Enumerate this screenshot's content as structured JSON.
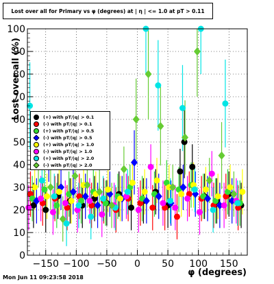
{
  "title": "Lost over all for Primary vs φ (degrees) at | η | <= 1.0 at pT > 0.11",
  "timestamp": "Mon Jun 11 09:23:58 2018",
  "legend": [
    {
      "label": "(+) with pT/|q| > 0.1",
      "color": "#000000",
      "shape": "circle"
    },
    {
      "label": "(-) with pT/|q| > 0.1",
      "color": "#ff0000",
      "shape": "circle"
    },
    {
      "label": "(+) with pT/|q| > 0.5",
      "color": "#33dd33",
      "shape": "circle"
    },
    {
      "label": "(-) with pT/|q| > 0.5",
      "color": "#0000ff",
      "shape": "diamond"
    },
    {
      "label": "(+) with pT/|q| > 1.0",
      "color": "#ffff00",
      "shape": "circle"
    },
    {
      "label": "(-) with pT/|q| > 1.0",
      "color": "#ff00ff",
      "shape": "circle"
    },
    {
      "label": "(+) with pT/|q| > 2.0",
      "color": "#00e5e5",
      "shape": "circle"
    },
    {
      "label": "(-) with pT/|q| > 2.0",
      "color": "#66cc33",
      "shape": "diamond"
    }
  ],
  "chart_data": {
    "type": "scatter",
    "title": "Lost over all for Primary vs φ (degrees) at | η | <= 1.0 at pT > 0.11",
    "xlabel": "φ (degrees)",
    "ylabel": "Lost over all (%)",
    "xlim": [
      -180,
      180
    ],
    "ylim": [
      0,
      100
    ],
    "xticks": [
      -150,
      -100,
      -50,
      0,
      50,
      100,
      150
    ],
    "yticks": [
      0,
      10,
      20,
      30,
      40,
      50,
      60,
      70,
      80,
      90,
      100
    ],
    "grid": true,
    "series": [
      {
        "name": "(+) with pT/|q| > 0.1",
        "color": "#000000",
        "marker": "circle",
        "x": [
          -170,
          -150,
          -130,
          -110,
          -90,
          -70,
          -50,
          -30,
          -10,
          10,
          30,
          50,
          70,
          77,
          90,
          110,
          130,
          150,
          170
        ],
        "y": [
          22,
          20,
          26,
          24,
          22,
          25,
          23,
          27,
          21,
          24,
          28,
          22,
          37,
          50,
          39,
          26,
          24,
          27,
          22
        ]
      },
      {
        "name": "(-) with pT/|q| > 0.1",
        "color": "#ff0000",
        "marker": "circle",
        "x": [
          -175,
          -155,
          -135,
          -115,
          -95,
          -75,
          -55,
          -35,
          -15,
          5,
          25,
          45,
          65,
          85,
          105,
          125,
          145,
          165
        ],
        "y": [
          27,
          23,
          25,
          21,
          26,
          22,
          24,
          20,
          25,
          23,
          21,
          21,
          17,
          27,
          25,
          22,
          26,
          21
        ]
      },
      {
        "name": "(+) with pT/|q| > 0.5",
        "color": "#33dd33",
        "marker": "circle",
        "x": [
          -172,
          -152,
          -132,
          -112,
          -92,
          -72,
          -52,
          -32,
          -12,
          8,
          28,
          48,
          68,
          88,
          108,
          128,
          148,
          168
        ],
        "y": [
          25,
          29,
          22,
          27,
          24,
          28,
          23,
          26,
          30,
          25,
          27,
          32,
          29,
          31,
          26,
          24,
          28,
          23
        ]
      },
      {
        "name": "(-) with pT/|q| > 0.5",
        "color": "#0000ff",
        "marker": "diamond",
        "x": [
          -165,
          -145,
          -125,
          -105,
          -85,
          -65,
          -45,
          -25,
          -5,
          15,
          35,
          55,
          75,
          95,
          115,
          135,
          155
        ],
        "y": [
          24,
          48,
          30,
          28,
          26,
          22,
          27,
          25,
          41,
          24,
          26,
          23,
          30,
          27,
          25,
          22,
          24
        ]
      },
      {
        "name": "(+) with pT/|q| > 1.0",
        "color": "#ffff00",
        "marker": "circle",
        "x": [
          -168,
          -148,
          -128,
          -108,
          -88,
          -68,
          -48,
          -28,
          -8,
          12,
          32,
          52,
          72,
          92,
          112,
          132,
          152,
          172
        ],
        "y": [
          30,
          26,
          28,
          24,
          31,
          27,
          29,
          25,
          32,
          28,
          33,
          30,
          27,
          31,
          29,
          26,
          30,
          28
        ]
      },
      {
        "name": "(-) with pT/|q| > 1.0",
        "color": "#ff00ff",
        "marker": "circle",
        "x": [
          -178,
          -158,
          -138,
          -118,
          -98,
          -78,
          -58,
          -38,
          -18,
          2,
          22,
          42,
          62,
          82,
          102,
          122,
          142,
          162
        ],
        "y": [
          21,
          25,
          19,
          23,
          20,
          24,
          18,
          22,
          26,
          20,
          39,
          23,
          21,
          25,
          19,
          36,
          22,
          24
        ]
      },
      {
        "name": "(+) with pT/|q| > 2.0",
        "color": "#00e5e5",
        "marker": "circle",
        "x": [
          -176,
          -156,
          -136,
          -116,
          -96,
          -76,
          -56,
          -36,
          -16,
          14,
          34,
          54,
          74,
          94,
          104,
          124,
          144,
          164
        ],
        "y": [
          66,
          33,
          26,
          14,
          22,
          17,
          25,
          21,
          28,
          100,
          75,
          24,
          65,
          29,
          100,
          20,
          67,
          23
        ]
      },
      {
        "name": "(-) with pT/|q| > 2.0",
        "color": "#66cc33",
        "marker": "diamond",
        "x": [
          -162,
          -142,
          -122,
          -102,
          -82,
          -62,
          -42,
          -22,
          -2,
          18,
          38,
          58,
          78,
          98,
          118,
          138,
          158
        ],
        "y": [
          45,
          30,
          16,
          35,
          31,
          28,
          22,
          38,
          60,
          80,
          57,
          30,
          52,
          90,
          33,
          44,
          27
        ]
      }
    ]
  }
}
